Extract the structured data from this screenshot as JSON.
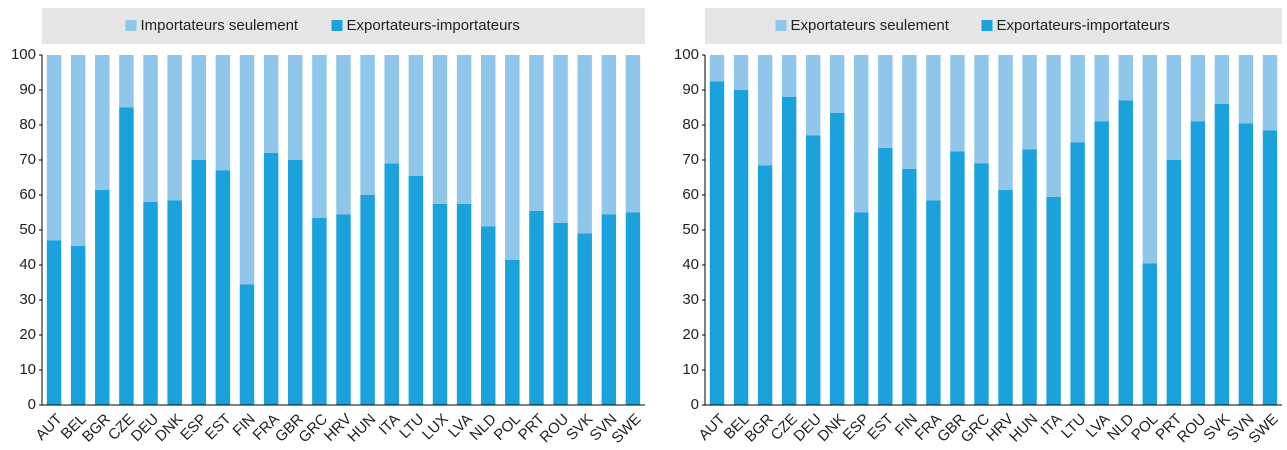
{
  "chart_data": [
    {
      "type": "stacked_bar",
      "categories": [
        "AUT",
        "BEL",
        "BGR",
        "CZE",
        "DEU",
        "DNK",
        "ESP",
        "EST",
        "FIN",
        "FRA",
        "GBR",
        "GRC",
        "HRV",
        "HUN",
        "ITA",
        "LTU",
        "LUX",
        "LVA",
        "NLD",
        "POL",
        "PRT",
        "ROU",
        "SVK",
        "SVN",
        "SWE"
      ],
      "series": [
        {
          "name": "Importateurs seulement",
          "color": "#8fc6ea",
          "values": [
            53,
            54.5,
            38.5,
            15,
            42,
            41.5,
            30,
            33,
            65.5,
            28,
            30,
            46.5,
            45.5,
            40,
            31,
            34.5,
            42.5,
            42.5,
            49,
            58.5,
            44.5,
            48,
            51,
            45.5,
            45
          ]
        },
        {
          "name": "Exportateurs-importateurs",
          "color": "#1ba1dc",
          "values": [
            47,
            45.5,
            61.5,
            85,
            58,
            58.5,
            70,
            67,
            34.5,
            72,
            70,
            53.5,
            54.5,
            60,
            69,
            65.5,
            57.5,
            57.5,
            51,
            41.5,
            55.5,
            52,
            49,
            54.5,
            55
          ]
        }
      ],
      "ylim": [
        0,
        100
      ],
      "yticks": [
        0,
        10,
        20,
        30,
        40,
        50,
        60,
        70,
        80,
        90,
        100
      ],
      "grid": false,
      "legend": "top"
    },
    {
      "type": "stacked_bar",
      "categories": [
        "AUT",
        "BEL",
        "BGR",
        "CZE",
        "DEU",
        "DNK",
        "ESP",
        "EST",
        "FIN",
        "FRA",
        "GBR",
        "GRC",
        "HRV",
        "HUN",
        "ITA",
        "LTU",
        "LVA",
        "NLD",
        "POL",
        "PRT",
        "ROU",
        "SVK",
        "SVN",
        "SWE"
      ],
      "series": [
        {
          "name": "Exportateurs seulement",
          "color": "#8fc6ea",
          "values": [
            7.5,
            10,
            31.5,
            12,
            23,
            16.5,
            45,
            26.5,
            32.5,
            41.5,
            27.5,
            31,
            38.5,
            27,
            40.5,
            25,
            19,
            13,
            59.5,
            30,
            19,
            14,
            19.5,
            21.5
          ]
        },
        {
          "name": "Exportateurs-importateurs",
          "color": "#1ba1dc",
          "values": [
            92.5,
            90,
            68.5,
            88,
            77,
            83.5,
            55,
            73.5,
            67.5,
            58.5,
            72.5,
            69,
            61.5,
            73,
            59.5,
            75,
            81,
            87,
            40.5,
            70,
            81,
            86,
            80.5,
            78.5
          ]
        }
      ],
      "ylim": [
        0,
        100
      ],
      "yticks": [
        0,
        10,
        20,
        30,
        40,
        50,
        60,
        70,
        80,
        90,
        100
      ],
      "grid": false,
      "legend": "top"
    }
  ]
}
